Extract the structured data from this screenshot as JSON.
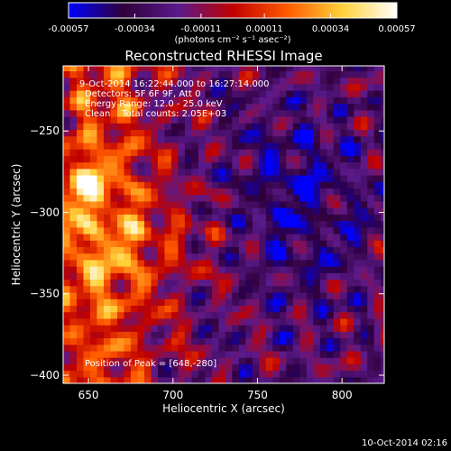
{
  "chart_data": {
    "type": "heatmap",
    "title": "Reconstructed RHESSI Image",
    "xlabel": "Heliocentric X (arcsec)",
    "ylabel": "Heliocentric Y (arcsec)",
    "xlim": [
      635,
      825
    ],
    "ylim": [
      -405,
      -210
    ],
    "x_ticks": [
      650,
      700,
      750,
      800
    ],
    "y_ticks": [
      -400,
      -350,
      -300,
      -250
    ],
    "annotations": [
      "9-Oct-2014 16:22:44.000 to 16:27:14.000",
      "Detectors: 5F 6F 9F, Att 0",
      "Energy Range: 12.0 - 25.0 keV",
      "Clean    Total counts: 2.05E+03"
    ],
    "peak_label": "Position of Peak = [648,-280]",
    "peak_position": [
      648,
      -280
    ],
    "colorbar": {
      "tick_labels": [
        "-0.00057",
        "-0.00034",
        "-0.00011",
        "0.00011",
        "0.00034",
        "0.00057"
      ],
      "tick_values": [
        -0.00057,
        -0.00034,
        -0.00011,
        0.00011,
        0.00034,
        0.00057
      ],
      "units_label": "(photons cm⁻² s⁻¹ asec⁻²)",
      "colors": [
        "#0000ff",
        "#30003a",
        "#5a1a8c",
        "#c00000",
        "#ff5a00",
        "#ffd23a",
        "#ffffff"
      ]
    },
    "grid": false
  },
  "footer": {
    "timestamp": "10-Oct-2014 02:16"
  }
}
